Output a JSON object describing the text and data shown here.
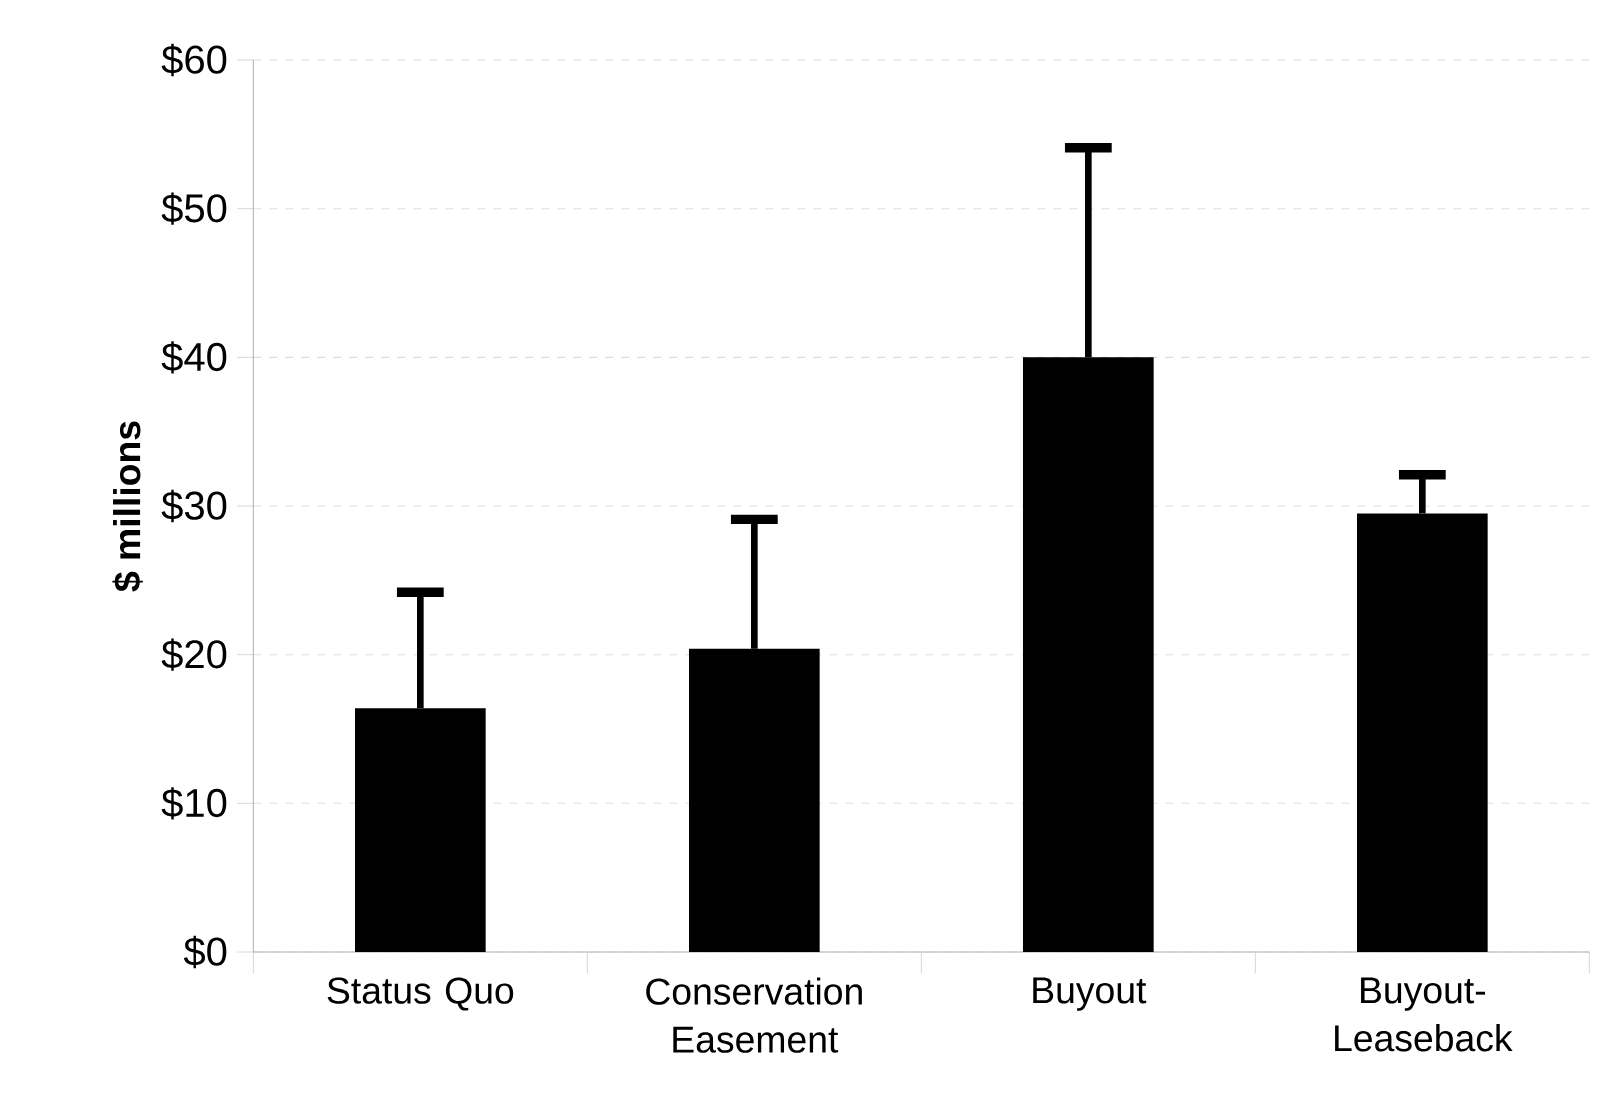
{
  "chart_data": {
    "type": "bar",
    "ylabel": "$ millions",
    "categories": [
      "Status Quo",
      "Conservation Easement",
      "Buyout",
      "Buyout-Leaseback"
    ],
    "values": [
      16.4,
      20.4,
      40,
      29.5
    ],
    "errors": [
      [
        16.4,
        24.2
      ],
      [
        20.4,
        29.1
      ],
      [
        40,
        54.1
      ],
      [
        29.5,
        32.1
      ]
    ],
    "color": "#000000",
    "ylim": [
      0,
      60
    ],
    "yticks": [
      {
        "value": 0,
        "label": "$0"
      },
      {
        "value": 10,
        "label": "$10"
      },
      {
        "value": 20,
        "label": "$20"
      },
      {
        "value": 30,
        "label": "$30"
      },
      {
        "value": 40,
        "label": "$40"
      },
      {
        "value": 50,
        "label": "$50"
      },
      {
        "value": 60,
        "label": "$60"
      }
    ],
    "grid": "y"
  }
}
